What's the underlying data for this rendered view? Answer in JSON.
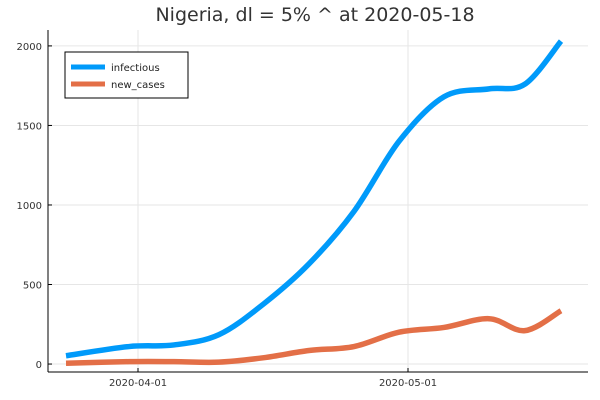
{
  "chart_data": {
    "type": "line",
    "title": "Nigeria,  dl = 5% ^ at 2020-05-18",
    "xlabel": "",
    "ylabel": "",
    "x_dates": [
      "2020-03-24",
      "2020-03-31",
      "2020-04-05",
      "2020-04-10",
      "2020-04-15",
      "2020-04-20",
      "2020-04-25",
      "2020-04-30",
      "2020-05-05",
      "2020-05-10",
      "2020-05-14",
      "2020-05-18"
    ],
    "x_range": [
      "2020-03-22",
      "2020-05-21"
    ],
    "x_ticks": [
      "2020-04-01",
      "2020-05-01"
    ],
    "ylim": [
      -50,
      2100
    ],
    "y_ticks": [
      0,
      500,
      1000,
      1500,
      2000
    ],
    "grid": true,
    "legend_position": "top-left",
    "series": [
      {
        "name": "infectious",
        "color": "#009AFA",
        "values": [
          52,
          110,
          120,
          185,
          380,
          630,
          960,
          1400,
          1680,
          1730,
          1760,
          2030
        ]
      },
      {
        "name": "new_cases",
        "color": "#E36F47",
        "values": [
          5,
          15,
          15,
          12,
          40,
          85,
          110,
          200,
          230,
          285,
          210,
          335
        ]
      }
    ]
  }
}
